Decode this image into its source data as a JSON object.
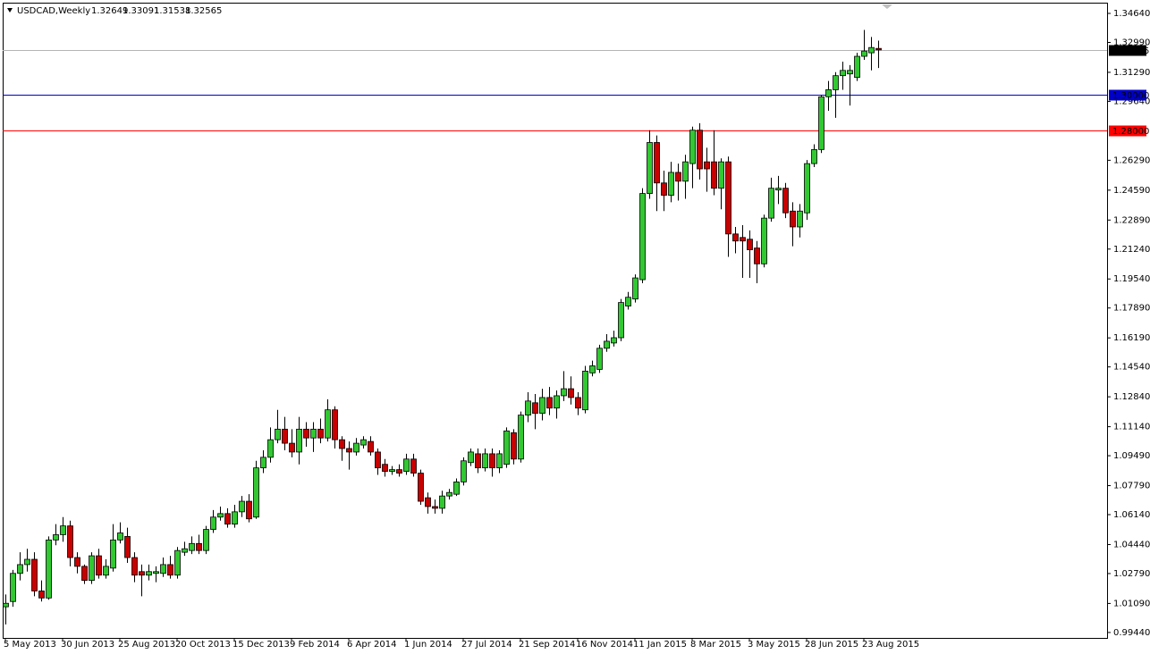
{
  "chart_data": {
    "type": "candlestick",
    "symbol": "USDCAD,Weekly",
    "categories": [
      "5 May 2013",
      null,
      null,
      null,
      null,
      null,
      null,
      null,
      "30 Jun 2013",
      null,
      null,
      null,
      null,
      null,
      null,
      null,
      "25 Aug 2013",
      null,
      null,
      null,
      null,
      null,
      null,
      null,
      "20 Oct 2013",
      null,
      null,
      null,
      null,
      null,
      null,
      null,
      "15 Dec 2013",
      null,
      null,
      null,
      null,
      null,
      null,
      null,
      "9 Feb 2014",
      null,
      null,
      null,
      null,
      null,
      null,
      null,
      "6 Apr 2014",
      null,
      null,
      null,
      null,
      null,
      null,
      null,
      "1 Jun 2014",
      null,
      null,
      null,
      null,
      null,
      null,
      null,
      "27 Jul 2014",
      null,
      null,
      null,
      null,
      null,
      null,
      null,
      "21 Sep 2014",
      null,
      null,
      null,
      null,
      null,
      null,
      null,
      "16 Nov 2014",
      null,
      null,
      null,
      null,
      null,
      null,
      null,
      "11 Jan 2015",
      null,
      null,
      null,
      null,
      null,
      null,
      null,
      "8 Mar 2015",
      null,
      null,
      null,
      null,
      null,
      null,
      null,
      "3 May 2015",
      null,
      null,
      null,
      null,
      null,
      null,
      null,
      "28 Jun 2015",
      null,
      null,
      null,
      null,
      null,
      null,
      null,
      "23 Aug 2015",
      null,
      null
    ],
    "open": [
      1.009,
      1.012,
      1.028,
      1.033,
      1.036,
      1.018,
      1.014,
      1.047,
      1.05,
      1.055,
      1.037,
      1.032,
      1.024,
      1.038,
      1.027,
      1.031,
      1.047,
      1.049,
      1.037,
      1.029,
      1.027,
      1.028,
      1.028,
      1.033,
      1.027,
      1.04,
      1.041,
      1.045,
      1.041,
      1.053,
      1.06,
      1.062,
      1.056,
      1.063,
      1.069,
      1.06,
      1.088,
      1.094,
      1.104,
      1.11,
      1.102,
      1.097,
      1.11,
      1.105,
      1.11,
      1.105,
      1.121,
      1.104,
      1.099,
      1.097,
      1.101,
      1.103,
      1.097,
      1.09,
      1.086,
      1.087,
      1.086,
      1.093,
      1.085,
      1.071,
      1.066,
      1.065,
      1.072,
      1.073,
      1.08,
      1.091,
      1.096,
      1.088,
      1.096,
      1.088,
      1.09,
      1.108,
      1.093,
      1.118,
      1.125,
      1.119,
      1.128,
      1.122,
      1.129,
      1.133,
      1.128,
      1.121,
      1.142,
      1.144,
      1.156,
      1.159,
      1.162,
      1.18,
      1.184,
      1.195,
      1.244,
      1.273,
      1.25,
      1.243,
      1.256,
      1.251,
      1.261,
      1.28,
      1.262,
      1.262,
      1.247,
      1.262,
      1.221,
      1.219,
      1.218,
      1.213,
      1.204,
      1.23,
      1.246,
      1.247,
      1.234,
      1.225,
      1.233,
      1.261,
      1.269,
      1.299,
      1.303,
      1.311,
      1.312,
      1.31,
      1.322,
      1.324,
      1.32649
    ],
    "high": [
      1.016,
      1.03,
      1.04,
      1.042,
      1.04,
      1.024,
      1.049,
      1.056,
      1.06,
      1.058,
      1.04,
      1.033,
      1.04,
      1.042,
      1.036,
      1.056,
      1.057,
      1.054,
      1.04,
      1.033,
      1.033,
      1.032,
      1.037,
      1.038,
      1.043,
      1.046,
      1.049,
      1.05,
      1.055,
      1.064,
      1.066,
      1.065,
      1.067,
      1.072,
      1.073,
      1.092,
      1.098,
      1.111,
      1.121,
      1.117,
      1.11,
      1.117,
      1.114,
      1.114,
      1.116,
      1.127,
      1.123,
      1.106,
      1.103,
      1.105,
      1.106,
      1.106,
      1.099,
      1.093,
      1.089,
      1.09,
      1.096,
      1.096,
      1.087,
      1.074,
      1.07,
      1.075,
      1.076,
      1.082,
      1.094,
      1.099,
      1.099,
      1.099,
      1.099,
      1.098,
      1.111,
      1.11,
      1.12,
      1.131,
      1.13,
      1.133,
      1.134,
      1.132,
      1.143,
      1.14,
      1.131,
      1.146,
      1.149,
      1.158,
      1.164,
      1.166,
      1.184,
      1.188,
      1.198,
      1.247,
      1.28,
      1.277,
      1.257,
      1.262,
      1.261,
      1.266,
      1.282,
      1.284,
      1.27,
      1.28,
      1.264,
      1.265,
      1.225,
      1.226,
      1.223,
      1.217,
      1.232,
      1.253,
      1.254,
      1.25,
      1.239,
      1.238,
      1.263,
      1.272,
      1.3,
      1.308,
      1.313,
      1.319,
      1.317,
      1.324,
      1.337,
      1.333,
      1.33091
    ],
    "low": [
      0.999,
      1.009,
      1.024,
      1.029,
      1.015,
      1.012,
      1.013,
      1.044,
      1.046,
      1.032,
      1.028,
      1.022,
      1.022,
      1.025,
      1.025,
      1.029,
      1.045,
      1.034,
      1.023,
      1.015,
      1.024,
      1.023,
      1.026,
      1.025,
      1.025,
      1.038,
      1.039,
      1.039,
      1.039,
      1.051,
      1.058,
      1.054,
      1.054,
      1.06,
      1.057,
      1.059,
      1.085,
      1.091,
      1.102,
      1.098,
      1.094,
      1.09,
      1.1,
      1.097,
      1.102,
      1.103,
      1.099,
      1.092,
      1.087,
      1.095,
      1.099,
      1.095,
      1.084,
      1.083,
      1.084,
      1.083,
      1.084,
      1.083,
      1.067,
      1.062,
      1.062,
      1.062,
      1.07,
      1.072,
      1.078,
      1.089,
      1.085,
      1.086,
      1.083,
      1.085,
      1.088,
      1.09,
      1.091,
      1.114,
      1.11,
      1.115,
      1.118,
      1.116,
      1.126,
      1.124,
      1.118,
      1.119,
      1.14,
      1.142,
      1.154,
      1.157,
      1.16,
      1.178,
      1.182,
      1.193,
      1.241,
      1.234,
      1.234,
      1.239,
      1.24,
      1.241,
      1.247,
      1.252,
      1.245,
      1.243,
      1.235,
      1.208,
      1.21,
      1.196,
      1.196,
      1.193,
      1.202,
      1.228,
      1.238,
      1.23,
      1.214,
      1.219,
      1.229,
      1.259,
      1.267,
      1.291,
      1.287,
      1.303,
      1.294,
      1.308,
      1.32,
      1.314,
      1.31538
    ],
    "close": [
      1.011,
      1.028,
      1.033,
      1.036,
      1.018,
      1.014,
      1.047,
      1.05,
      1.055,
      1.037,
      1.032,
      1.024,
      1.038,
      1.027,
      1.032,
      1.047,
      1.051,
      1.037,
      1.027,
      1.027,
      1.029,
      1.029,
      1.033,
      1.027,
      1.041,
      1.042,
      1.045,
      1.041,
      1.053,
      1.06,
      1.062,
      1.056,
      1.063,
      1.069,
      1.059,
      1.088,
      1.094,
      1.104,
      1.11,
      1.102,
      1.097,
      1.11,
      1.105,
      1.11,
      1.105,
      1.121,
      1.104,
      1.099,
      1.097,
      1.102,
      1.104,
      1.097,
      1.088,
      1.086,
      1.087,
      1.085,
      1.093,
      1.085,
      1.069,
      1.066,
      1.065,
      1.072,
      1.074,
      1.08,
      1.092,
      1.097,
      1.088,
      1.096,
      1.088,
      1.096,
      1.109,
      1.093,
      1.118,
      1.126,
      1.119,
      1.128,
      1.122,
      1.129,
      1.133,
      1.128,
      1.122,
      1.143,
      1.146,
      1.156,
      1.16,
      1.162,
      1.182,
      1.185,
      1.196,
      1.244,
      1.273,
      1.25,
      1.243,
      1.256,
      1.251,
      1.262,
      1.28,
      1.258,
      1.258,
      1.247,
      1.262,
      1.221,
      1.217,
      1.217,
      1.212,
      1.204,
      1.23,
      1.247,
      1.247,
      1.233,
      1.225,
      1.234,
      1.261,
      1.269,
      1.299,
      1.303,
      1.311,
      1.314,
      1.314,
      1.322,
      1.325,
      1.327,
      1.32565
    ],
    "up_color": "#32c832",
    "down_color": "#c80000",
    "wick_color": "#000000",
    "ylim": [
      0.9913,
      1.3525
    ],
    "yticks": [
      {
        "value": 1.3464,
        "label": "1.34640"
      },
      {
        "value": 1.3299,
        "label": "1.32990"
      },
      {
        "value": 1.3129,
        "label": "1.31290"
      },
      {
        "value": 1.2964,
        "label": "1.29640"
      },
      {
        "value": 1.2629,
        "label": "1.26290"
      },
      {
        "value": 1.2459,
        "label": "1.24590"
      },
      {
        "value": 1.2289,
        "label": "1.22890"
      },
      {
        "value": 1.2124,
        "label": "1.21240"
      },
      {
        "value": 1.1954,
        "label": "1.19540"
      },
      {
        "value": 1.1789,
        "label": "1.17890"
      },
      {
        "value": 1.1619,
        "label": "1.16190"
      },
      {
        "value": 1.1454,
        "label": "1.14540"
      },
      {
        "value": 1.1284,
        "label": "1.12840"
      },
      {
        "value": 1.1114,
        "label": "1.11140"
      },
      {
        "value": 1.0949,
        "label": "1.09490"
      },
      {
        "value": 1.0779,
        "label": "1.07790"
      },
      {
        "value": 1.0614,
        "label": "1.06140"
      },
      {
        "value": 1.0444,
        "label": "1.04440"
      },
      {
        "value": 1.0279,
        "label": "1.02790"
      },
      {
        "value": 1.0109,
        "label": "1.01090"
      },
      {
        "value": 0.9944,
        "label": "0.99440"
      }
    ],
    "hlines": [
      {
        "value": 1.3,
        "label": "1.30000",
        "color": "#0000c8"
      },
      {
        "value": 1.28,
        "label": "1.28000",
        "color": "#ff0000"
      }
    ],
    "current_price": {
      "value": 1.32565,
      "label": "1.32565",
      "color": "#b4b4b4"
    },
    "grid": false
  }
}
